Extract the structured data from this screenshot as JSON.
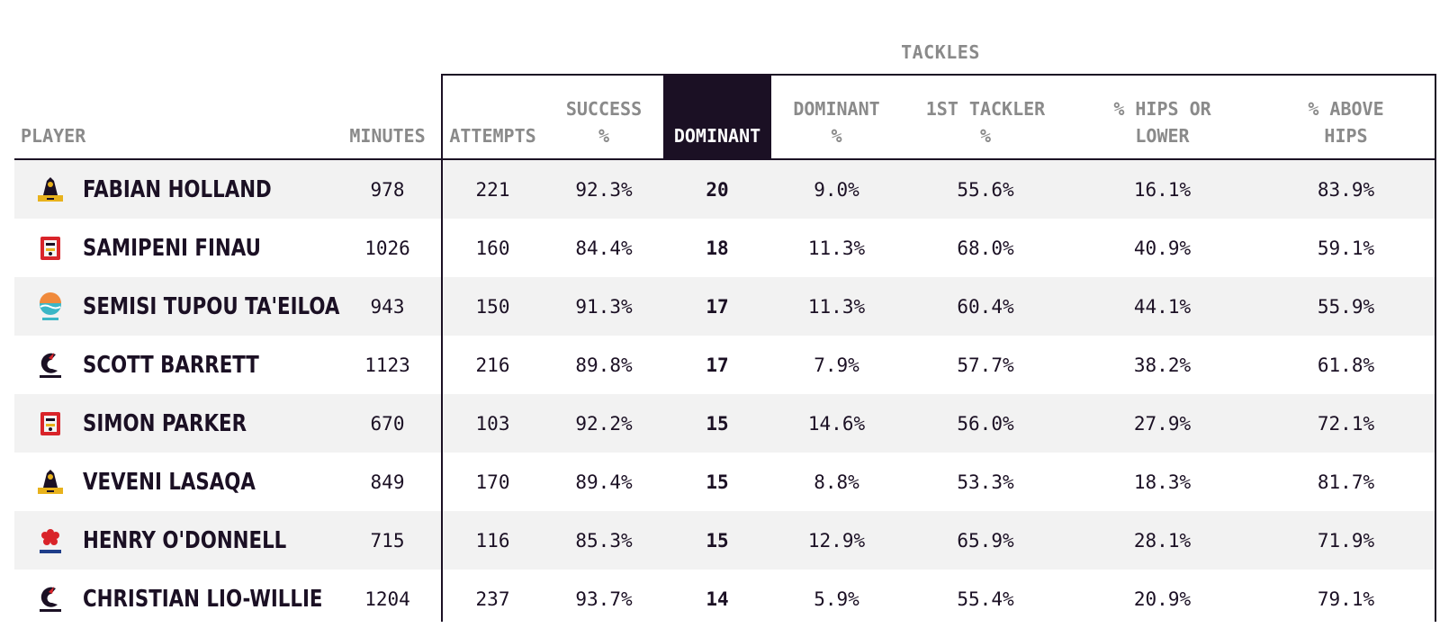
{
  "group_title": "TACKLES",
  "headers": {
    "player": "PLAYER",
    "minutes": "MINUTES",
    "attempts": "ATTEMPTS",
    "success": "SUCCESS\n%",
    "dominant": "DOMINANT",
    "dominant_pct": "DOMINANT\n%",
    "first_tackler": "1ST TACKLER\n%",
    "hips_lower": "% HIPS OR\nLOWER",
    "above_hips": "% ABOVE\nHIPS"
  },
  "rows": [
    {
      "name": "FABIAN HOLLAND",
      "team": "highlanders-logo",
      "minutes": "978",
      "attempts": "221",
      "success": "92.3%",
      "dominant": "20",
      "dominant_pct": "9.0%",
      "first_tackler": "55.6%",
      "hips_lower": "16.1%",
      "above_hips": "83.9%"
    },
    {
      "name": "SAMIPENI FINAU",
      "team": "chiefs-logo",
      "minutes": "1026",
      "attempts": "160",
      "success": "84.4%",
      "dominant": "18",
      "dominant_pct": "11.3%",
      "first_tackler": "68.0%",
      "hips_lower": "40.9%",
      "above_hips": "59.1%"
    },
    {
      "name": "SEMISI TUPOU TA'EILOA",
      "team": "moana-logo",
      "minutes": "943",
      "attempts": "150",
      "success": "91.3%",
      "dominant": "17",
      "dominant_pct": "11.3%",
      "first_tackler": "60.4%",
      "hips_lower": "44.1%",
      "above_hips": "55.9%"
    },
    {
      "name": "SCOTT BARRETT",
      "team": "crusaders-logo",
      "minutes": "1123",
      "attempts": "216",
      "success": "89.8%",
      "dominant": "17",
      "dominant_pct": "7.9%",
      "first_tackler": "57.7%",
      "hips_lower": "38.2%",
      "above_hips": "61.8%"
    },
    {
      "name": "SIMON PARKER",
      "team": "chiefs-logo",
      "minutes": "670",
      "attempts": "103",
      "success": "92.2%",
      "dominant": "15",
      "dominant_pct": "14.6%",
      "first_tackler": "56.0%",
      "hips_lower": "27.9%",
      "above_hips": "72.1%"
    },
    {
      "name": "VEVENI LASAQA",
      "team": "highlanders-logo",
      "minutes": "849",
      "attempts": "170",
      "success": "89.4%",
      "dominant": "15",
      "dominant_pct": "8.8%",
      "first_tackler": "53.3%",
      "hips_lower": "18.3%",
      "above_hips": "81.7%"
    },
    {
      "name": "HENRY O'DONNELL",
      "team": "waratahs-logo",
      "minutes": "715",
      "attempts": "116",
      "success": "85.3%",
      "dominant": "15",
      "dominant_pct": "12.9%",
      "first_tackler": "65.9%",
      "hips_lower": "28.1%",
      "above_hips": "71.9%"
    },
    {
      "name": "CHRISTIAN LIO-WILLIE",
      "team": "crusaders-logo",
      "minutes": "1204",
      "attempts": "237",
      "success": "93.7%",
      "dominant": "14",
      "dominant_pct": "5.9%",
      "first_tackler": "55.4%",
      "hips_lower": "20.9%",
      "above_hips": "79.1%"
    }
  ]
}
